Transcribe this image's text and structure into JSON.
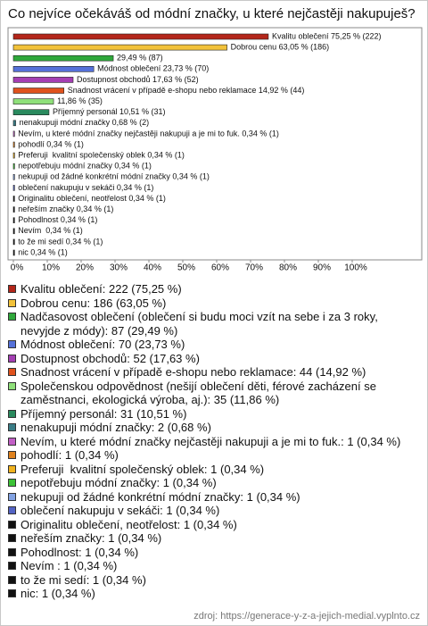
{
  "chart_data": {
    "type": "barh",
    "title": "Co nejvíce očekáváš od módní značky, u které nejčastěji nakupuješ?",
    "values": [
      75.25,
      63.05,
      29.49,
      23.73,
      17.63,
      14.92,
      11.86,
      10.51,
      0.68,
      0.34,
      0.34,
      0.34,
      0.34,
      0.34,
      0.34,
      0.34,
      0.34,
      0.34,
      0.34,
      0.34,
      0.34
    ],
    "value_labels": [
      "Kvalitu oblečení 75,25 % (222)",
      "Dobrou cenu 63,05 % (186)",
      "29,49 % (87)",
      "Módnost oblečení 23,73 % (70)",
      "Dostupnost obchodů 17,63 % (52)",
      "Snadnost vrácení v případě e-shopu nebo reklamace 14,92 % (44)",
      "11,86 % (35)",
      "Příjemný personál 10,51 % (31)",
      "nenakupuji módní značky 0,68 % (2)",
      "Nevím, u které módní značky nejčastěji nakupuji a je mi to fuk. 0,34 % (1)",
      "pohodlí 0,34 % (1)",
      "Preferuji  kvalitní společenský oblek 0,34 % (1)",
      "nepotřebuju módní značky 0,34 % (1)",
      "nekupuji od žádné konkrétní módní značky 0,34 % (1)",
      "oblečení nakupuju v sekáči 0,34 % (1)",
      "Originalitu oblečení, neotřelost 0,34 % (1)",
      "neřeším značky 0,34 % (1)",
      "Pohodlnost 0,34 % (1)",
      "Nevím  0,34 % (1)",
      "to že mi sedí 0,34 % (1)",
      "nic 0,34 % (1)"
    ],
    "legend_labels": [
      "Kvalitu oblečení: 222 (75,25 %)",
      "Dobrou cenu: 186 (63,05 %)",
      "Nadčasovost oblečení (oblečení si budu moci vzít na sebe i za 3 roky, nevyjde z módy): 87 (29,49 %)",
      "Módnost oblečení: 70 (23,73 %)",
      "Dostupnost obchodů: 52 (17,63 %)",
      "Snadnost vrácení v případě e-shopu nebo reklamace: 44 (14,92 %)",
      "Společenskou odpovědnost (nešijí oblečení děti, férové zacházení se zaměstnanci, ekologická výroba, aj.): 35 (11,86 %)",
      "Příjemný personál: 31 (10,51 %)",
      "nenakupuji módní značky: 2 (0,68 %)",
      "Nevím, u které módní značky nejčastěji nakupuji a je mi to fuk.: 1 (0,34 %)",
      "pohodlí: 1 (0,34 %)",
      "Preferuji  kvalitní společenský oblek: 1 (0,34 %)",
      "nepotřebuju módní značky: 1 (0,34 %)",
      "nekupuji od žádné konkrétní módní značky: 1 (0,34 %)",
      "oblečení nakupuju v sekáči: 1 (0,34 %)",
      "Originalitu oblečení, neotřelost: 1 (0,34 %)",
      "neřeším značky: 1 (0,34 %)",
      "Pohodlnost: 1 (0,34 %)",
      "Nevím : 1 (0,34 %)",
      "to že mi sedí: 1 (0,34 %)",
      "nic: 1 (0,34 %)"
    ],
    "colors": [
      "#b3261a",
      "#f2c23a",
      "#2fa83b",
      "#5571d9",
      "#a43fb3",
      "#e0521d",
      "#8fe07a",
      "#2a8a5e",
      "#3a7d86",
      "#c25fc6",
      "#e0821e",
      "#f0b21e",
      "#3cc236",
      "#82a2e2",
      "#5363c4",
      "#111111",
      "#111111",
      "#111111",
      "#111111",
      "#111111",
      "#111111"
    ],
    "xlim": [
      0,
      100
    ],
    "xticks": [
      {
        "value": 0,
        "label": "0%"
      },
      {
        "value": 10,
        "label": "10%"
      },
      {
        "value": 20,
        "label": "20%"
      },
      {
        "value": 30,
        "label": "30%"
      },
      {
        "value": 40,
        "label": "40%"
      },
      {
        "value": 50,
        "label": "50%"
      },
      {
        "value": 60,
        "label": "60%"
      },
      {
        "value": 70,
        "label": "70%"
      },
      {
        "value": 80,
        "label": "80%"
      },
      {
        "value": 90,
        "label": "90%"
      },
      {
        "value": 100,
        "label": "100%"
      }
    ],
    "source": "zdroj: https://generace-y-z-a-jejich-medial.vyplnto.cz"
  }
}
